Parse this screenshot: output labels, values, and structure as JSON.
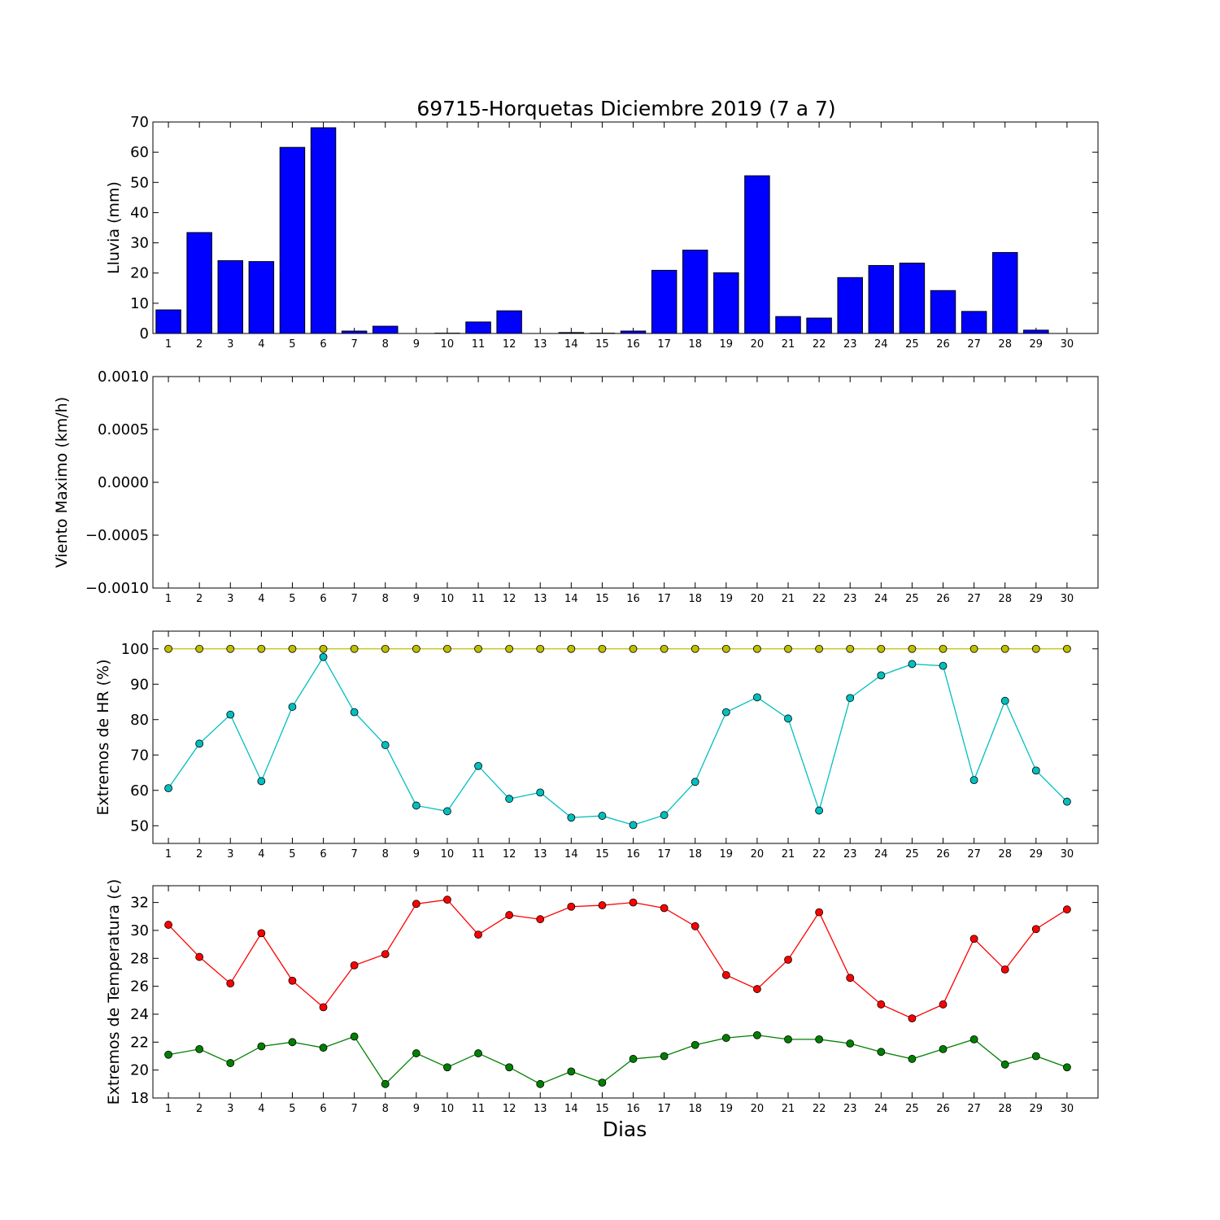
{
  "title": "69715-Horquetas Diciembre 2019  (7 a 7)",
  "xlabel": "Dias",
  "chart_data": [
    {
      "type": "bar",
      "ylabel": "Lluvia (mm)",
      "ylim": [
        0,
        70
      ],
      "yticks": [
        "0",
        "10",
        "20",
        "30",
        "40",
        "50",
        "60",
        "70"
      ],
      "categories": [
        "1",
        "2",
        "3",
        "4",
        "5",
        "6",
        "7",
        "8",
        "9",
        "10",
        "11",
        "12",
        "13",
        "14",
        "15",
        "16",
        "17",
        "18",
        "19",
        "20",
        "21",
        "22",
        "23",
        "24",
        "25",
        "26",
        "27",
        "28",
        "29",
        "30"
      ],
      "values": [
        7.8,
        33.4,
        24.1,
        23.8,
        61.6,
        68.1,
        0.8,
        2.4,
        0,
        0.1,
        3.8,
        7.5,
        0,
        0.3,
        0.1,
        0.8,
        20.9,
        27.6,
        20.1,
        52.2,
        5.6,
        5.1,
        18.5,
        22.5,
        23.3,
        14.2,
        7.3,
        26.8,
        1.1,
        0
      ],
      "color": "#0000ff"
    },
    {
      "type": "line",
      "ylabel": "Viento Maximo (km/h)",
      "ylim": [
        -0.001,
        0.001
      ],
      "yticks": [
        "−0.0010",
        "−0.0005",
        "0.0000",
        "0.0005",
        "0.0010"
      ],
      "categories": [
        "1",
        "2",
        "3",
        "4",
        "5",
        "6",
        "7",
        "8",
        "9",
        "10",
        "11",
        "12",
        "13",
        "14",
        "15",
        "16",
        "17",
        "18",
        "19",
        "20",
        "21",
        "22",
        "23",
        "24",
        "25",
        "26",
        "27",
        "28",
        "29",
        "30"
      ],
      "series": []
    },
    {
      "type": "line",
      "ylabel": "Extremos de HR (%)",
      "ylim": [
        45,
        105
      ],
      "yticks": [
        "50",
        "60",
        "70",
        "80",
        "90",
        "100"
      ],
      "categories": [
        "1",
        "2",
        "3",
        "4",
        "5",
        "6",
        "7",
        "8",
        "9",
        "10",
        "11",
        "12",
        "13",
        "14",
        "15",
        "16",
        "17",
        "18",
        "19",
        "20",
        "21",
        "22",
        "23",
        "24",
        "25",
        "26",
        "27",
        "28",
        "29",
        "30"
      ],
      "series": [
        {
          "color": "#bfbf00",
          "values": [
            100,
            100,
            100,
            100,
            100,
            100,
            100,
            100,
            100,
            100,
            100,
            100,
            100,
            100,
            100,
            100,
            100,
            100,
            100,
            100,
            100,
            100,
            100,
            100,
            100,
            100,
            100,
            100,
            100,
            100
          ]
        },
        {
          "color": "#00bfbf",
          "values": [
            60.6,
            73.2,
            81.4,
            62.6,
            83.6,
            97.7,
            82.1,
            72.8,
            55.7,
            54.1,
            66.9,
            57.6,
            59.4,
            52.3,
            52.8,
            50.2,
            53.0,
            62.4,
            82.1,
            86.3,
            80.3,
            54.3,
            86.1,
            92.5,
            95.7,
            95.2,
            62.9,
            85.3,
            65.6,
            56.8
          ]
        }
      ]
    },
    {
      "type": "line",
      "ylabel": "Extremos de Temperatura (c)",
      "ylim": [
        18,
        33.2
      ],
      "yticks": [
        "18",
        "20",
        "22",
        "24",
        "26",
        "28",
        "30",
        "32"
      ],
      "categories": [
        "1",
        "2",
        "3",
        "4",
        "5",
        "6",
        "7",
        "8",
        "9",
        "10",
        "11",
        "12",
        "13",
        "14",
        "15",
        "16",
        "17",
        "18",
        "19",
        "20",
        "21",
        "22",
        "23",
        "24",
        "25",
        "26",
        "27",
        "28",
        "29",
        "30"
      ],
      "series": [
        {
          "color": "#ff0000",
          "values": [
            30.4,
            28.1,
            26.2,
            29.8,
            26.4,
            24.5,
            27.5,
            28.3,
            31.9,
            32.2,
            29.7,
            31.1,
            30.8,
            31.7,
            31.8,
            32.0,
            31.6,
            30.3,
            26.8,
            25.8,
            27.9,
            31.3,
            26.6,
            24.7,
            23.7,
            24.7,
            29.4,
            27.2,
            30.1,
            31.5
          ]
        },
        {
          "color": "#008000",
          "values": [
            21.1,
            21.5,
            20.5,
            21.7,
            22.0,
            21.6,
            22.4,
            19.0,
            21.2,
            20.2,
            21.2,
            20.2,
            19.0,
            19.9,
            19.1,
            20.8,
            21.0,
            21.8,
            22.3,
            22.5,
            22.2,
            22.2,
            21.9,
            21.3,
            20.8,
            21.5,
            22.2,
            20.4,
            21.0,
            20.2
          ]
        }
      ]
    }
  ]
}
